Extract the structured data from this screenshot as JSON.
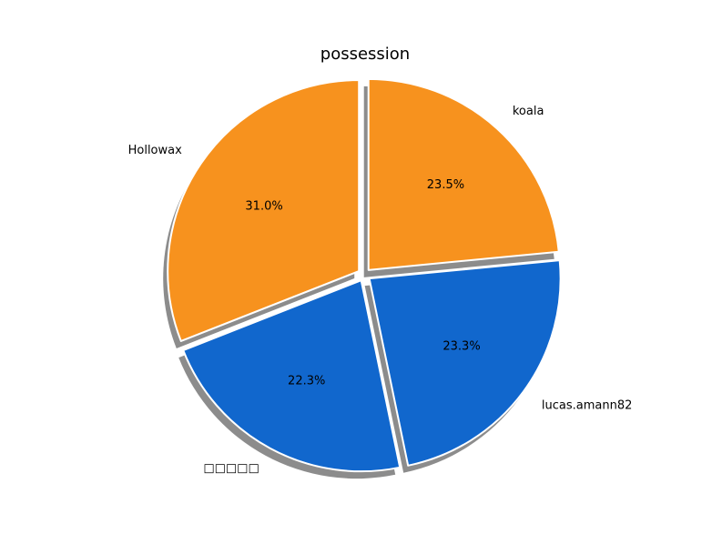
{
  "chart_data": {
    "type": "pie",
    "title": "possession",
    "slices": [
      {
        "label": "koala",
        "value": 23.5,
        "pct_label": "23.5%",
        "color": "#f7921e",
        "explode": true
      },
      {
        "label": "lucas.amann82",
        "value": 23.3,
        "pct_label": "23.3%",
        "color": "#1167cd",
        "explode": true
      },
      {
        "label": "□□□□□",
        "value": 22.3,
        "pct_label": "22.3%",
        "color": "#1167cd",
        "explode": true
      },
      {
        "label": "Hollowax",
        "value": 31.0,
        "pct_label": "31.0%",
        "color": "#f7921e",
        "explode": true
      }
    ],
    "start_angle_deg": 90,
    "direction": "clockwise",
    "shadow": true,
    "edge_color": "#ffffff"
  }
}
